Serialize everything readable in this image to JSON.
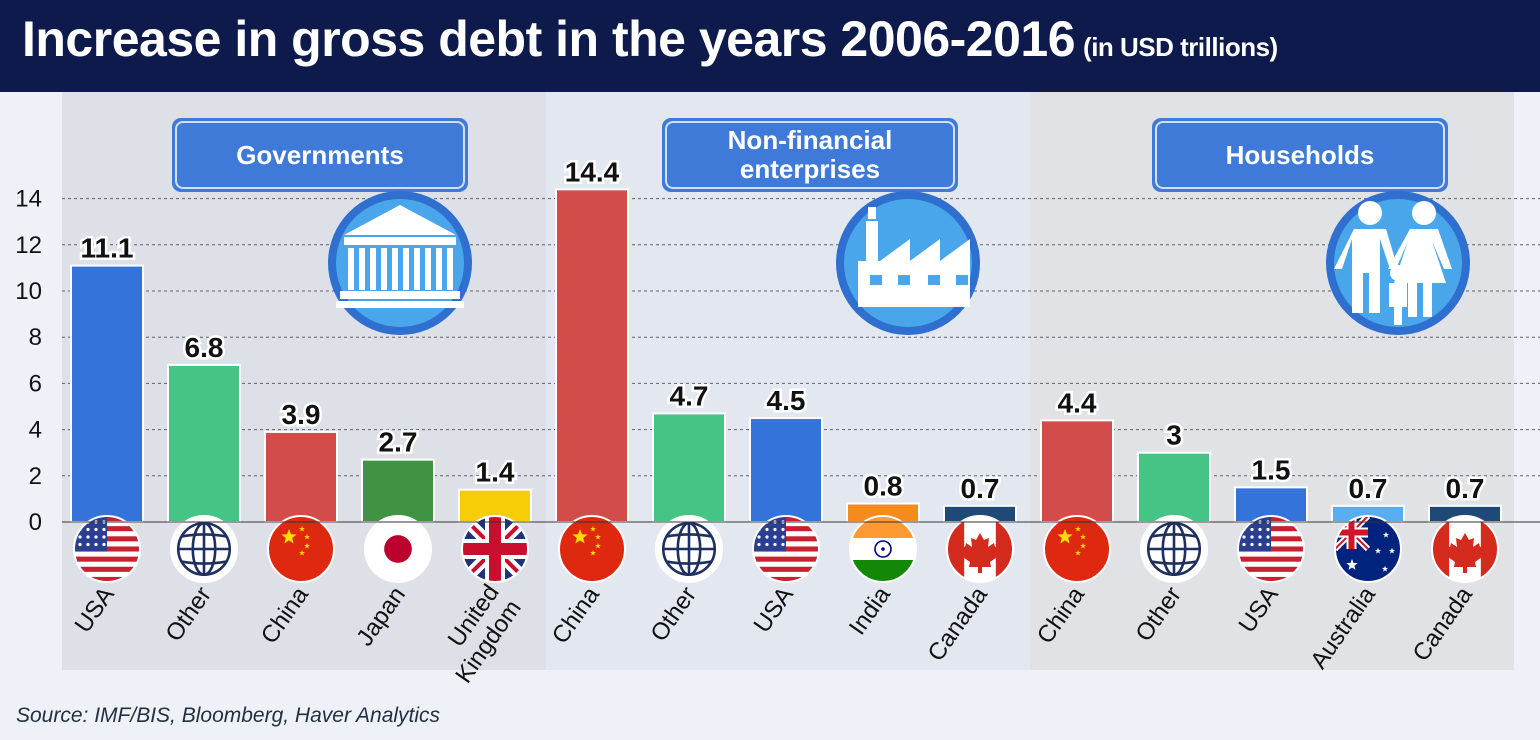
{
  "header": {
    "title": "Increase in gross debt in the years 2006-2016",
    "subtitle": "(in USD trillions)"
  },
  "source": "Source: IMF/BIS, Bloomberg, Haver Analytics",
  "colors": {
    "background": "#eef2f8",
    "header": "#0e1a4c",
    "panel_button": "#3f7ad8",
    "badge": "#4aa6ea",
    "usa": "#3473d9",
    "other": "#45c486",
    "china": "#d24d4a",
    "japan": "#409343",
    "uk": "#f7cd08",
    "india": "#f58a1d",
    "canada": "#1f4a78",
    "australia": "#58aef0"
  },
  "chart_data": {
    "type": "bar",
    "ylim": [
      0,
      15
    ],
    "yticks": [
      0,
      2,
      4,
      6,
      8,
      10,
      12,
      14
    ],
    "grid": true,
    "groups": [
      {
        "label": "Governments",
        "icon": "government-building-icon",
        "bars": [
          {
            "category": "USA",
            "value": 11.1,
            "value_label": "11.1",
            "flag": "usa-flag-icon",
            "color": "#3473d9"
          },
          {
            "category": "Other",
            "value": 6.8,
            "value_label": "6.8",
            "flag": "globe-icon",
            "color": "#45c486"
          },
          {
            "category": "China",
            "value": 3.9,
            "value_label": "3.9",
            "flag": "china-flag-icon",
            "color": "#d24d4a"
          },
          {
            "category": "Japan",
            "value": 2.7,
            "value_label": "2.7",
            "flag": "japan-flag-icon",
            "color": "#409343"
          },
          {
            "category": "United Kingdom",
            "value": 1.4,
            "value_label": "1.4",
            "flag": "uk-flag-icon",
            "color": "#f7cd08"
          }
        ]
      },
      {
        "label": "Non-financial enterprises",
        "icon": "factory-icon",
        "bars": [
          {
            "category": "China",
            "value": 14.4,
            "value_label": "14.4",
            "flag": "china-flag-icon",
            "color": "#d24d4a"
          },
          {
            "category": "Other",
            "value": 4.7,
            "value_label": "4.7",
            "flag": "globe-icon",
            "color": "#45c486"
          },
          {
            "category": "USA",
            "value": 4.5,
            "value_label": "4.5",
            "flag": "usa-flag-icon",
            "color": "#3473d9"
          },
          {
            "category": "India",
            "value": 0.8,
            "value_label": "0.8",
            "flag": "india-flag-icon",
            "color": "#f58a1d"
          },
          {
            "category": "Canada",
            "value": 0.7,
            "value_label": "0.7",
            "flag": "canada-flag-icon",
            "color": "#1f4a78"
          }
        ]
      },
      {
        "label": "Households",
        "icon": "family-icon",
        "bars": [
          {
            "category": "China",
            "value": 4.4,
            "value_label": "4.4",
            "flag": "china-flag-icon",
            "color": "#d24d4a"
          },
          {
            "category": "Other",
            "value": 3,
            "value_label": "3",
            "flag": "globe-icon",
            "color": "#45c486"
          },
          {
            "category": "USA",
            "value": 1.5,
            "value_label": "1.5",
            "flag": "usa-flag-icon",
            "color": "#3473d9"
          },
          {
            "category": "Australia",
            "value": 0.7,
            "value_label": "0.7",
            "flag": "australia-flag-icon",
            "color": "#58aef0"
          },
          {
            "category": "Canada",
            "value": 0.7,
            "value_label": "0.7",
            "flag": "canada-flag-icon",
            "color": "#1f4a78"
          }
        ]
      }
    ]
  }
}
